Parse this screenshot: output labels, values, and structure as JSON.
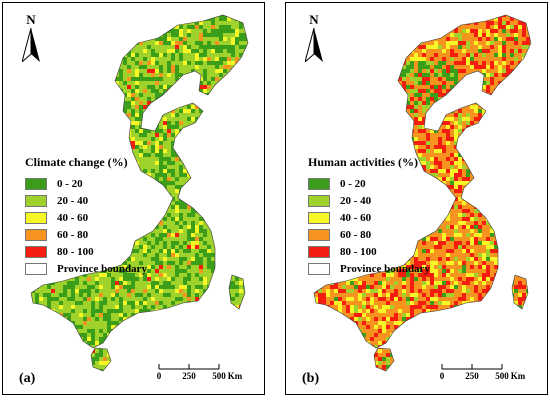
{
  "panels": [
    {
      "label": "(a)",
      "legend_title": "Climate change (%)",
      "palette": "climate",
      "north_label": "N",
      "legend": [
        {
          "label": "0 - 20",
          "color": "#3a9e1a"
        },
        {
          "label": "20 - 40",
          "color": "#9fd22a"
        },
        {
          "label": "40 - 60",
          "color": "#f7f728"
        },
        {
          "label": "60 - 80",
          "color": "#f79420"
        },
        {
          "label": "80 - 100",
          "color": "#f51c10"
        },
        {
          "label": "Province boundary",
          "color": "#ffffff"
        }
      ],
      "scale": {
        "ticks": [
          "0",
          "250",
          "500"
        ],
        "unit": "Km"
      }
    },
    {
      "label": "(b)",
      "legend_title": "Human activities (%)",
      "palette": "human",
      "north_label": "N",
      "legend": [
        {
          "label": "0 - 20",
          "color": "#3a9e1a"
        },
        {
          "label": "20 - 40",
          "color": "#9fd22a"
        },
        {
          "label": "40 - 60",
          "color": "#f7f728"
        },
        {
          "label": "60 - 80",
          "color": "#f79420"
        },
        {
          "label": "80 - 100",
          "color": "#f51c10"
        },
        {
          "label": "Province boundary",
          "color": "#ffffff"
        }
      ],
      "scale": {
        "ticks": [
          "0",
          "250",
          "500"
        ],
        "unit": "Km"
      }
    }
  ]
}
